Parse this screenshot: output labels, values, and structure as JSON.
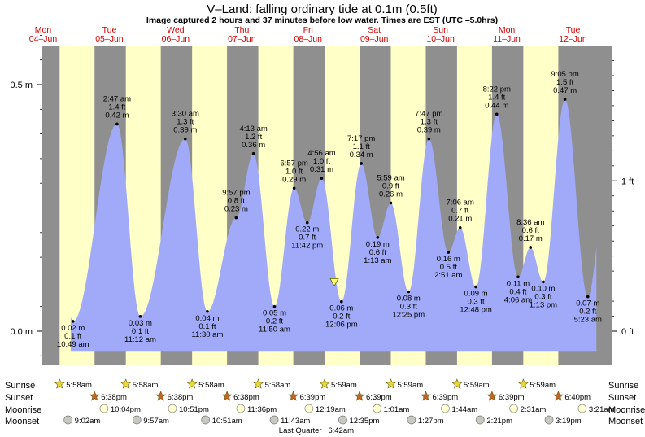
{
  "header": {
    "title": "V–Land: falling  ordinary tide at 0.1m (0.5ft)",
    "subtitle": "Image captured 2 hours and 37 minutes before low water. Times are EST (UTC –5.0hrs)"
  },
  "colors": {
    "night": "#8f8f8f",
    "day": "#ffffc8",
    "tide_fill": "#a0aaf8",
    "day_label": "#d40000",
    "sunrise_star": "#e8d840",
    "sunset_star": "#c86420",
    "moonrise": "#ffffd0",
    "moonset": "#c8c8c0"
  },
  "days": [
    {
      "dow": "Mon",
      "date": "04–Jun"
    },
    {
      "dow": "Tue",
      "date": "05–Jun"
    },
    {
      "dow": "Wed",
      "date": "06–Jun"
    },
    {
      "dow": "Thu",
      "date": "07–Jun"
    },
    {
      "dow": "Fri",
      "date": "08–Jun"
    },
    {
      "dow": "Sat",
      "date": "09–Jun"
    },
    {
      "dow": "Sun",
      "date": "10–Jun"
    },
    {
      "dow": "Mon",
      "date": "11–Jun"
    },
    {
      "dow": "Tue",
      "date": "12–Jun"
    }
  ],
  "axes": {
    "left_ticks": [
      {
        "value": 0.5,
        "label": "0.5 m"
      },
      {
        "value": 0.0,
        "label": "0.0 m"
      }
    ],
    "right_ticks": [
      {
        "value": 0.3048,
        "label": "1 ft"
      },
      {
        "value": 0.0,
        "label": "0 ft"
      }
    ]
  },
  "chart_data": {
    "type": "area",
    "title": "V–Land: falling  ordinary tide at 0.1m (0.5ft)",
    "ylabel": "",
    "ylim": [
      -0.08,
      0.6
    ],
    "x_unit": "hours since Mon 04-Jun 00:00 EST",
    "extremes": [
      {
        "day": 0,
        "time": "10:49 am",
        "m": "0.02 m",
        "ft": "0.1 ft",
        "v": 0.02,
        "type": "low",
        "t": 10.82
      },
      {
        "day": 1,
        "time": "2:47 am",
        "m": "0.42 m",
        "ft": "1.4 ft",
        "v": 0.42,
        "type": "high",
        "t": 26.78
      },
      {
        "day": 1,
        "time": "11:12 am",
        "m": "0.03 m",
        "ft": "0.1 ft",
        "v": 0.03,
        "type": "low",
        "t": 35.2
      },
      {
        "day": 2,
        "time": "3:30 am",
        "m": "0.39 m",
        "ft": "1.3 ft",
        "v": 0.39,
        "type": "high",
        "t": 51.5
      },
      {
        "day": 2,
        "time": "11:30 am",
        "m": "0.04 m",
        "ft": "0.1 ft",
        "v": 0.04,
        "type": "low",
        "t": 59.5
      },
      {
        "day": 2,
        "time": "9:57 pm",
        "m": "0.23 m",
        "ft": "0.8 ft",
        "v": 0.23,
        "type": "high",
        "t": 69.95
      },
      {
        "day": 3,
        "time": "4:13 am",
        "m": "0.36 m",
        "ft": "1.2 ft",
        "v": 0.36,
        "type": "high",
        "t": 76.22
      },
      {
        "day": 3,
        "time": "11:50 am",
        "m": "0.05 m",
        "ft": "0.2 ft",
        "v": 0.05,
        "type": "low",
        "t": 83.83
      },
      {
        "day": 3,
        "time": "6:57 pm",
        "m": "0.29 m",
        "ft": "1.0 ft",
        "v": 0.29,
        "type": "high",
        "t": 90.95
      },
      {
        "day": 3,
        "time": "11:42 pm",
        "m": "0.22 m",
        "ft": "0.7 ft",
        "v": 0.22,
        "type": "low",
        "t": 95.7
      },
      {
        "day": 4,
        "time": "4:56 am",
        "m": "0.31 m",
        "ft": "1.0 ft",
        "v": 0.31,
        "type": "high",
        "t": 100.93
      },
      {
        "day": 4,
        "time": "12:06 pm",
        "m": "0.06 m",
        "ft": "0.2 ft",
        "v": 0.06,
        "type": "low",
        "t": 108.1
      },
      {
        "day": 4,
        "time": "7:17 pm",
        "m": "0.34 m",
        "ft": "1.1 ft",
        "v": 0.34,
        "type": "high",
        "t": 115.28
      },
      {
        "day": 5,
        "time": "1:13 am",
        "m": "0.19 m",
        "ft": "0.6 ft",
        "v": 0.19,
        "type": "low",
        "t": 121.22
      },
      {
        "day": 5,
        "time": "5:59 am",
        "m": "0.26 m",
        "ft": "0.9 ft",
        "v": 0.26,
        "type": "high",
        "t": 125.98
      },
      {
        "day": 5,
        "time": "12:25 pm",
        "m": "0.08 m",
        "ft": "0.3 ft",
        "v": 0.08,
        "type": "low",
        "t": 132.42
      },
      {
        "day": 5,
        "time": "7:47 pm",
        "m": "0.39 m",
        "ft": "1.3 ft",
        "v": 0.39,
        "type": "high",
        "t": 139.78
      },
      {
        "day": 6,
        "time": "2:51 am",
        "m": "0.16 m",
        "ft": "0.5 ft",
        "v": 0.16,
        "type": "low",
        "t": 146.85
      },
      {
        "day": 6,
        "time": "7:06 am",
        "m": "0.21 m",
        "ft": "0.7 ft",
        "v": 0.21,
        "type": "high",
        "t": 151.1
      },
      {
        "day": 6,
        "time": "12:48 pm",
        "m": "0.09 m",
        "ft": "0.3 ft",
        "v": 0.09,
        "type": "low",
        "t": 156.8
      },
      {
        "day": 6,
        "time": "8:22 pm",
        "m": "0.44 m",
        "ft": "1.4 ft",
        "v": 0.44,
        "type": "high",
        "t": 164.37
      },
      {
        "day": 7,
        "time": "4:06 am",
        "m": "0.11 m",
        "ft": "0.4 ft",
        "v": 0.11,
        "type": "low",
        "t": 172.1
      },
      {
        "day": 7,
        "time": "8:36 am",
        "m": "0.17 m",
        "ft": "0.6 ft",
        "v": 0.17,
        "type": "high",
        "t": 176.6
      },
      {
        "day": 7,
        "time": "1:13 pm",
        "m": "0.10 m",
        "ft": "0.3 ft",
        "v": 0.1,
        "type": "low",
        "t": 181.22
      },
      {
        "day": 7,
        "time": "9:05 pm",
        "m": "0.47 m",
        "ft": "1.5 ft",
        "v": 0.47,
        "type": "high",
        "t": 189.08
      },
      {
        "day": 8,
        "time": "5:23 am",
        "m": "0.07 m",
        "ft": "0.2 ft",
        "v": 0.07,
        "type": "low",
        "t": 197.38
      }
    ],
    "current_level": {
      "v": 0.1,
      "t": 105.5
    }
  },
  "almanac": {
    "row_labels": {
      "sunrise": "Sunrise",
      "sunset": "Sunset",
      "moonrise": "Moonrise",
      "moonset": "Moonset"
    },
    "sunrise": [
      {
        "text": "5:58am",
        "t": 5.97
      },
      {
        "text": "5:58am",
        "t": 29.97
      },
      {
        "text": "5:58am",
        "t": 53.97
      },
      {
        "text": "5:58am",
        "t": 77.97
      },
      {
        "text": "5:59am",
        "t": 101.98
      },
      {
        "text": "5:59am",
        "t": 125.98
      },
      {
        "text": "5:59am",
        "t": 149.98
      },
      {
        "text": "5:59am",
        "t": 173.98
      }
    ],
    "sunset": [
      {
        "text": "6:38pm",
        "t": 18.63
      },
      {
        "text": "6:38pm",
        "t": 42.63
      },
      {
        "text": "6:38pm",
        "t": 66.63
      },
      {
        "text": "6:39pm",
        "t": 90.65
      },
      {
        "text": "6:39pm",
        "t": 114.65
      },
      {
        "text": "6:39pm",
        "t": 138.65
      },
      {
        "text": "6:39pm",
        "t": 162.65
      },
      {
        "text": "6:40pm",
        "t": 186.67
      }
    ],
    "moonrise": [
      {
        "text": "10:04pm",
        "t": 22.07
      },
      {
        "text": "10:51pm",
        "t": 46.85
      },
      {
        "text": "11:36pm",
        "t": 71.6
      },
      {
        "text": "12:19am",
        "t": 96.32
      },
      {
        "text": "1:01am",
        "t": 121.02
      },
      {
        "text": "1:44am",
        "t": 145.73
      },
      {
        "text": "2:31am",
        "t": 170.52
      },
      {
        "text": "3:21am",
        "t": 195.35
      }
    ],
    "moonset": [
      {
        "text": "9:02am",
        "t": 9.03
      },
      {
        "text": "9:57am",
        "t": 33.95
      },
      {
        "text": "10:51am",
        "t": 58.85
      },
      {
        "text": "11:43am",
        "t": 83.72
      },
      {
        "text": "12:35pm",
        "t": 108.58
      },
      {
        "text": "1:27pm",
        "t": 133.45
      },
      {
        "text": "2:21pm",
        "t": 158.35
      },
      {
        "text": "3:19pm",
        "t": 183.32
      }
    ],
    "moon_phase": "Last Quarter | 6:42am"
  }
}
